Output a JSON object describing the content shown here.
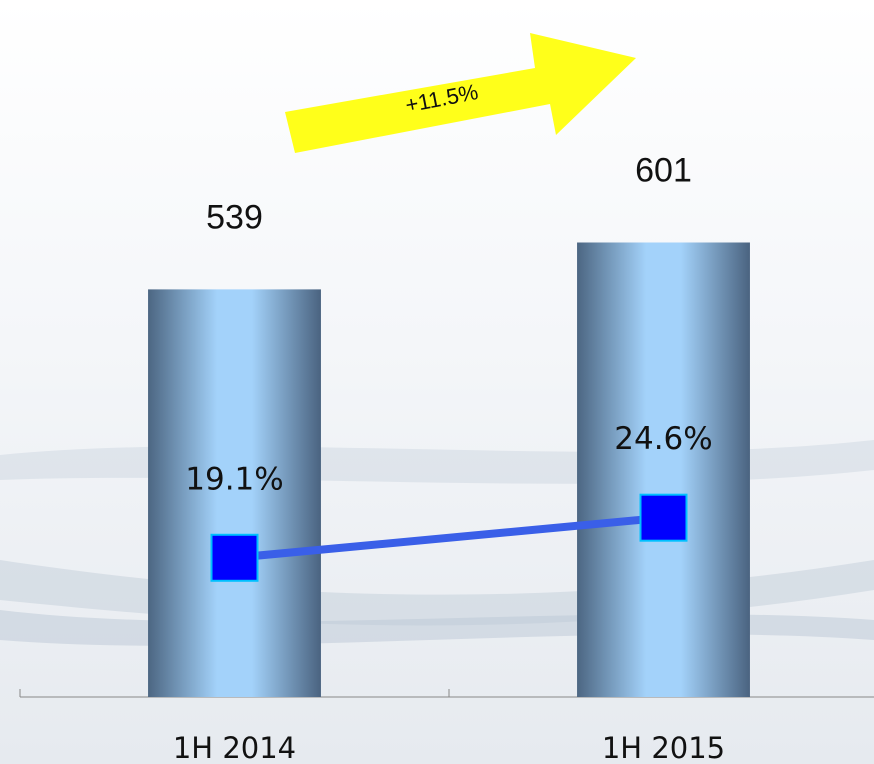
{
  "chart_data": {
    "type": "bar",
    "categories": [
      "1H 2014",
      "1H 2015"
    ],
    "series": [
      {
        "type": "bar",
        "color": "#9fcdf5",
        "values": [
          539,
          601
        ]
      },
      {
        "type": "line",
        "axis": "y2",
        "color": "#3a5fe8",
        "marker_color": "#0000ff",
        "values": [
          19.1,
          24.6
        ],
        "value_labels": [
          "19.1%",
          "24.6%"
        ]
      }
    ],
    "ylim": [
      0,
      800
    ],
    "y2lim": [
      0,
      83
    ],
    "annotations": [
      {
        "text": "+11.5%"
      }
    ]
  }
}
